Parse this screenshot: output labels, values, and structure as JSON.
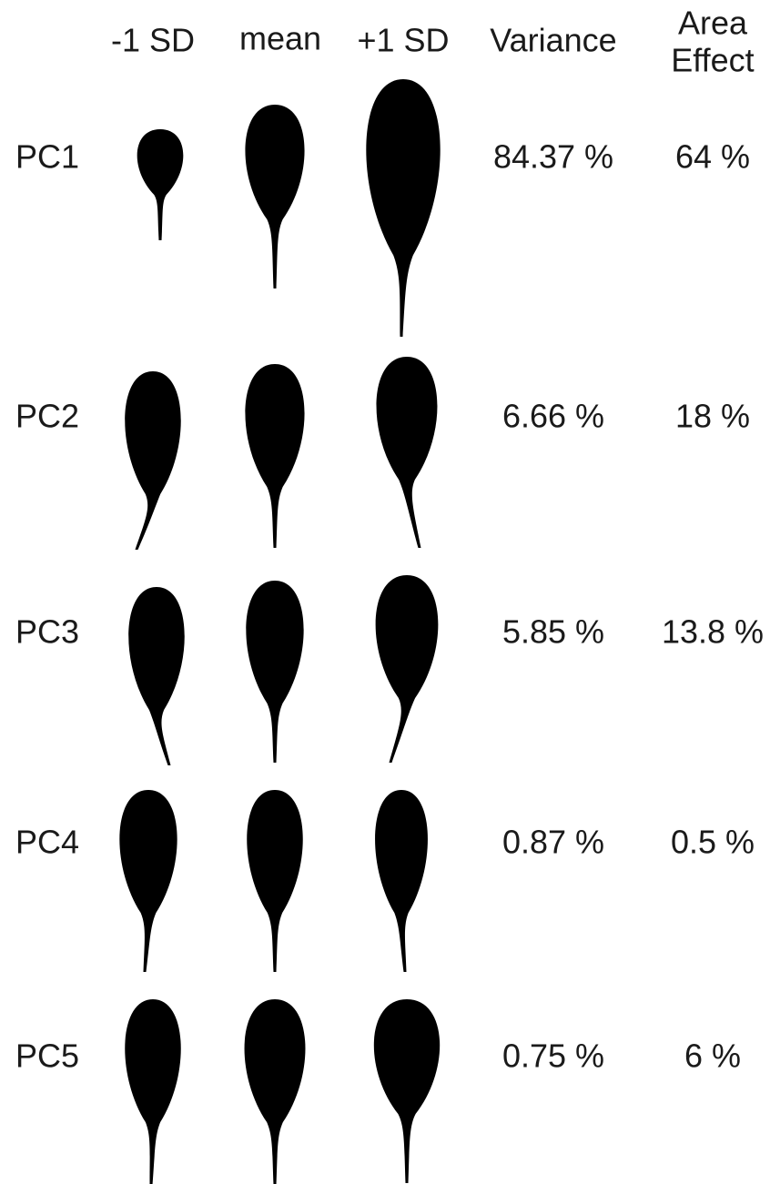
{
  "header": {
    "columns": [
      "-1 SD",
      "mean",
      "+1 SD",
      "Variance"
    ],
    "area_effect": [
      "Area",
      "Effect"
    ]
  },
  "table": {
    "rows": [
      [
        "PC1",
        "84.37 %",
        "64 %"
      ],
      [
        "PC2",
        "6.66 %",
        "18 %"
      ],
      [
        "PC3",
        "5.85 %",
        "13.8 %"
      ],
      [
        "PC4",
        "0.87 %",
        "0.5 %"
      ],
      [
        "PC5",
        "0.75 %",
        "6 %"
      ]
    ]
  }
}
